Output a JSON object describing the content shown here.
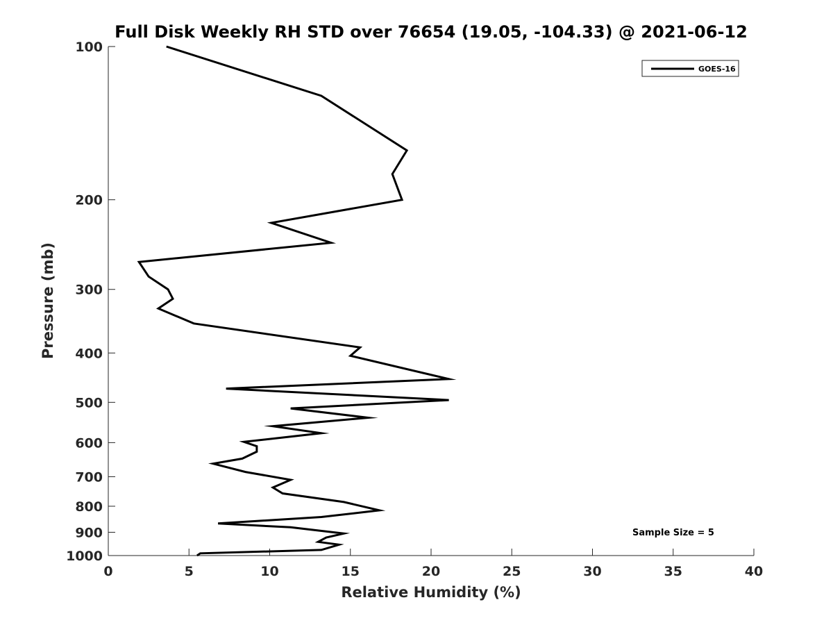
{
  "chart_data": {
    "type": "line",
    "title": "Full Disk Weekly RH STD over 76654 (19.05, -104.33) @ 2021-06-12",
    "xlabel": "Relative Humidity (%)",
    "ylabel": "Pressure (mb)",
    "xlim": [
      0,
      40
    ],
    "ylim": [
      1000,
      100
    ],
    "yscale": "log",
    "y_reversed": true,
    "grid": false,
    "x_ticks": [
      0,
      5,
      10,
      15,
      20,
      25,
      30,
      35,
      40
    ],
    "y_ticks": [
      100,
      200,
      300,
      400,
      500,
      600,
      700,
      800,
      900,
      1000
    ],
    "legend": {
      "position": "top-right",
      "entries": [
        "GOES-16"
      ]
    },
    "annotations": [
      "Sample Size = 5"
    ],
    "series": [
      {
        "name": "GOES-16",
        "color": "#000000",
        "x": [
          3.6,
          13.2,
          18.5,
          17.6,
          18.2,
          10.1,
          13.8,
          1.9,
          2.5,
          3.7,
          4.0,
          3.1,
          5.3,
          15.6,
          15.0,
          21.1,
          7.3,
          21.1,
          11.3,
          16.1,
          10.2,
          13.2,
          8.4,
          9.2,
          9.2,
          8.3,
          6.5,
          8.5,
          11.3,
          10.2,
          10.8,
          14.6,
          16.8,
          13.2,
          6.8,
          11.3,
          14.6,
          13.5,
          13.0,
          14.3,
          13.2,
          5.7,
          5.5
        ],
        "y": [
          100,
          125,
          160,
          178,
          200,
          222,
          243,
          265,
          283,
          300,
          313,
          327,
          350,
          390,
          405,
          450,
          470,
          495,
          514,
          536,
          557,
          575,
          598,
          610,
          625,
          645,
          660,
          685,
          710,
          735,
          755,
          785,
          815,
          840,
          865,
          880,
          905,
          922,
          940,
          952,
          975,
          990,
          1000
        ]
      }
    ]
  }
}
